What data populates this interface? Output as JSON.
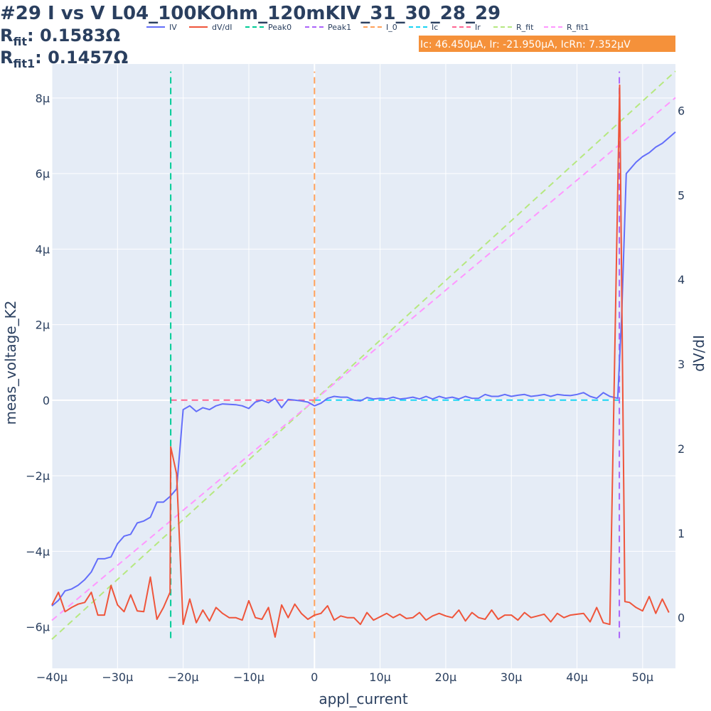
{
  "page": {
    "title": "#29 I vs V L04_100KOhm_120mKIV_31_30_28_29",
    "rfit_label": "R",
    "rfit_sub": "fit",
    "rfit_value": ": 0.1583Ω",
    "rfit1_label": "R",
    "rfit1_sub": "fit1",
    "rfit1_value": ": 0.1457Ω",
    "annotation": "Ic: 46.450μA, Ir: -21.950μA, IcRn: 7.352μV"
  },
  "colors": {
    "plot_bg": "#e5ecf6",
    "grid": "#ffffff",
    "annotation_bg": "#f5913a",
    "IV": "#636efa",
    "dVdI": "#ef553b",
    "Peak0": "#00cc96",
    "Peak1": "#ab63fa",
    "I_0": "#ffa15a",
    "Ic": "#19d3f3",
    "Ir": "#ff6692",
    "R_fit": "#b6e880",
    "R_fit1": "#ff97ff"
  },
  "chart_data": {
    "type": "line",
    "xlabel": "appl_current",
    "ylabel": "meas_voltage_K2",
    "y2label": "dV/dI",
    "xlim": [
      -40,
      55
    ],
    "ylim": [
      -7.1,
      8.9
    ],
    "y2lim": [
      -0.6,
      6.55
    ],
    "x_ticks": [
      -40,
      -30,
      -20,
      -10,
      0,
      10,
      20,
      30,
      40,
      50
    ],
    "x_tick_labels": [
      "−40μ",
      "−30μ",
      "−20μ",
      "−10μ",
      "0",
      "10μ",
      "20μ",
      "30μ",
      "40μ",
      "50μ"
    ],
    "y_ticks": [
      -6,
      -4,
      -2,
      0,
      2,
      4,
      6,
      8
    ],
    "y_tick_labels": [
      "−6μ",
      "−4μ",
      "−2μ",
      "0",
      "2μ",
      "4μ",
      "6μ",
      "8μ"
    ],
    "y2_ticks": [
      0,
      1,
      2,
      3,
      4,
      5,
      6
    ],
    "y2_tick_labels": [
      "0",
      "1",
      "2",
      "3",
      "4",
      "5",
      "6"
    ],
    "legend": [
      "IV",
      "dV/dI",
      "Peak0",
      "Peak1",
      "I_0",
      "Ic",
      "Ir",
      "R_fit",
      "R_fit1"
    ],
    "legend_position": "top",
    "series": [
      {
        "name": "IV",
        "axis": "y",
        "dash": "solid",
        "x": [
          -40,
          -39,
          -38,
          -37,
          -36,
          -35,
          -34,
          -33,
          -32,
          -31,
          -30,
          -29,
          -28,
          -27,
          -26,
          -25,
          -24,
          -23,
          -22,
          -21,
          -20,
          -19,
          -18,
          -17,
          -16,
          -15,
          -14,
          -12,
          -11,
          -10,
          -9,
          -8,
          -7,
          -6,
          -5,
          -4,
          -3,
          -2,
          -1,
          0,
          1,
          2,
          3,
          4,
          5,
          6,
          7,
          8,
          9,
          10,
          11,
          12,
          13,
          14,
          15,
          16,
          17,
          18,
          19,
          20,
          21,
          22,
          23,
          24,
          25,
          26,
          27,
          28,
          29,
          30,
          31,
          32,
          33,
          34,
          35,
          36,
          37,
          38,
          39,
          40,
          41,
          42,
          43,
          44,
          45,
          46.2,
          46.8,
          47.5,
          48,
          49,
          50,
          51,
          52,
          53,
          54,
          55
        ],
        "y": [
          -5.45,
          -5.3,
          -5.05,
          -5.0,
          -4.9,
          -4.75,
          -4.55,
          -4.2,
          -4.2,
          -4.15,
          -3.8,
          -3.6,
          -3.55,
          -3.25,
          -3.2,
          -3.1,
          -2.7,
          -2.7,
          -2.55,
          -2.35,
          -0.25,
          -0.15,
          -0.3,
          -0.2,
          -0.25,
          -0.15,
          -0.1,
          -0.12,
          -0.15,
          -0.22,
          -0.05,
          0.0,
          -0.07,
          0.05,
          -0.2,
          0.02,
          0.0,
          -0.02,
          -0.05,
          -0.15,
          -0.08,
          0.05,
          0.1,
          0.08,
          0.08,
          0.0,
          -0.02,
          0.07,
          0.03,
          0.05,
          0.03,
          0.08,
          0.03,
          0.05,
          0.08,
          0.03,
          0.1,
          0.03,
          0.1,
          0.05,
          0.08,
          0.03,
          0.1,
          0.05,
          0.05,
          0.15,
          0.1,
          0.1,
          0.15,
          0.1,
          0.13,
          0.15,
          0.1,
          0.12,
          0.15,
          0.1,
          0.15,
          0.13,
          0.12,
          0.15,
          0.2,
          0.1,
          0.05,
          0.2,
          0.1,
          0.05,
          2.2,
          6.0,
          6.1,
          6.3,
          6.45,
          6.55,
          6.7,
          6.8,
          6.95,
          7.1
        ]
      },
      {
        "name": "dV/dI",
        "axis": "y2",
        "dash": "solid",
        "x": [
          -40,
          -39,
          -38,
          -37,
          -36,
          -35,
          -34,
          -33,
          -32,
          -31,
          -30,
          -29,
          -28,
          -27,
          -26,
          -25,
          -24,
          -23,
          -22,
          -21.9,
          -21,
          -20,
          -19,
          -18,
          -17,
          -16,
          -15,
          -14,
          -13,
          -12,
          -11,
          -10,
          -9,
          -8,
          -7,
          -6,
          -5,
          -4,
          -3,
          -2,
          -1,
          0,
          1,
          2,
          3,
          4,
          5,
          6,
          7,
          8,
          9,
          10,
          11,
          12,
          13,
          14,
          15,
          16,
          17,
          18,
          19,
          20,
          21,
          22,
          23,
          24,
          25,
          26,
          27,
          28,
          29,
          30,
          31,
          32,
          33,
          34,
          35,
          36,
          37,
          38,
          39,
          40,
          41,
          42,
          43,
          44,
          45,
          46.5,
          47.3,
          48,
          49,
          50,
          51,
          52,
          53,
          54
        ],
        "y": [
          0.15,
          0.3,
          0.07,
          0.12,
          0.16,
          0.18,
          0.3,
          0.03,
          0.03,
          0.38,
          0.15,
          0.07,
          0.27,
          0.08,
          0.07,
          0.48,
          -0.02,
          0.12,
          0.3,
          2.02,
          1.7,
          -0.08,
          0.22,
          -0.06,
          0.09,
          -0.04,
          0.12,
          0.05,
          0.0,
          0.0,
          -0.03,
          0.2,
          0.0,
          -0.02,
          0.12,
          -0.23,
          0.15,
          0.0,
          0.16,
          0.05,
          -0.02,
          0.03,
          0.05,
          0.14,
          -0.03,
          0.02,
          0.0,
          0.0,
          -0.08,
          0.06,
          -0.03,
          0.01,
          0.05,
          0.0,
          0.04,
          -0.01,
          0.0,
          0.06,
          -0.03,
          0.02,
          0.05,
          0.02,
          0.0,
          0.09,
          -0.04,
          0.06,
          0.0,
          -0.02,
          0.09,
          -0.02,
          0.03,
          0.03,
          -0.03,
          0.06,
          0.0,
          0.02,
          0.04,
          -0.05,
          0.05,
          0.0,
          0.03,
          0.04,
          0.05,
          -0.05,
          0.12,
          -0.06,
          -0.08,
          6.3,
          0.19,
          0.18,
          0.12,
          0.08,
          0.25,
          0.05,
          0.22,
          0.06
        ]
      },
      {
        "name": "Peak0",
        "axis": "y",
        "dash": "dash",
        "x": [
          -21.9,
          -21.9
        ],
        "y": [
          -6.3,
          8.7
        ]
      },
      {
        "name": "Peak1",
        "axis": "y",
        "dash": "dash",
        "x": [
          46.45,
          46.45
        ],
        "y": [
          -6.3,
          8.7
        ]
      },
      {
        "name": "I_0",
        "axis": "y",
        "dash": "dash",
        "x": [
          0,
          0
        ],
        "y": [
          -6.3,
          8.7
        ]
      },
      {
        "name": "Ic",
        "axis": "y",
        "dash": "dash",
        "x": [
          0,
          46.45
        ],
        "y": [
          0,
          0
        ]
      },
      {
        "name": "Ir",
        "axis": "y",
        "dash": "dash",
        "x": [
          -21.95,
          0
        ],
        "y": [
          0,
          0
        ]
      },
      {
        "name": "R_fit",
        "axis": "y",
        "dash": "dash",
        "x": [
          -40,
          55
        ],
        "y": [
          -6.33,
          8.71
        ]
      },
      {
        "name": "R_fit1",
        "axis": "y",
        "dash": "dash",
        "x": [
          -40,
          55
        ],
        "y": [
          -5.83,
          8.01
        ]
      }
    ]
  }
}
